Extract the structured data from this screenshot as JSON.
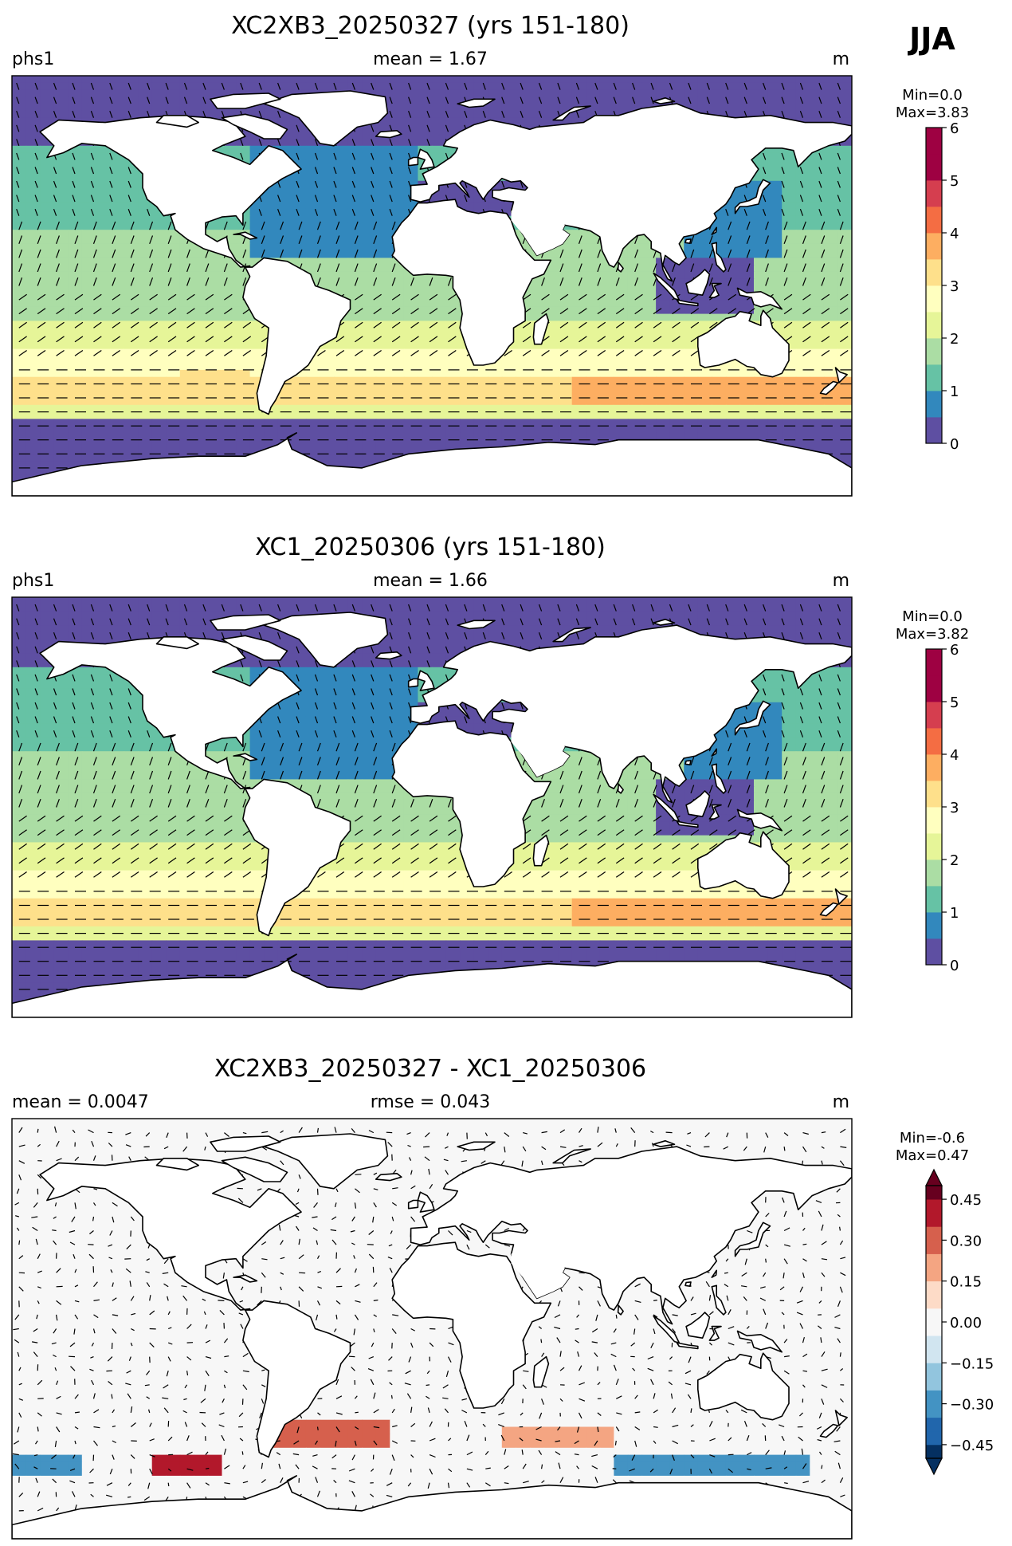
{
  "season": "JJA",
  "units": "m",
  "colors": {
    "sequential": [
      "#5e4fa2",
      "#3288bd",
      "#66c2a5",
      "#abdda4",
      "#e6f598",
      "#ffffbf",
      "#fee08b",
      "#fdae61",
      "#f46d43",
      "#d53e4f",
      "#9e0142"
    ],
    "diverging": [
      "#053061",
      "#2166ac",
      "#4393c3",
      "#92c5de",
      "#d1e5f0",
      "#f7f7f7",
      "#fddbc7",
      "#f4a582",
      "#d6604d",
      "#b2182b",
      "#67001f"
    ],
    "land": "#ffffff",
    "coast": "#000000"
  },
  "panels": [
    {
      "title": "XC2XB3_20250327 (yrs 151-180)",
      "left_label": "phs1",
      "center_label": "mean = 1.67",
      "right_label": "m",
      "colorbar_stats": [
        "Min=0.0",
        "Max=3.83"
      ]
    },
    {
      "title": "XC1_20250306 (yrs 151-180)",
      "left_label": "phs1",
      "center_label": "mean = 1.66",
      "right_label": "m",
      "colorbar_stats": [
        "Min=0.0",
        "Max=3.82"
      ]
    },
    {
      "title": "XC2XB3_20250327 - XC1_20250306",
      "left_label": "mean = 0.0047",
      "center_label": "rmse = 0.043",
      "right_label": "m",
      "colorbar_stats": [
        "Min=-0.6",
        "Max=0.47"
      ]
    }
  ],
  "chart_data": [
    {
      "type": "heatmap",
      "map": "global lat-lon contour map with wave direction vectors",
      "title": "XC2XB3_20250327 (yrs 151-180)",
      "variable": "phs1",
      "units": "m",
      "mean": 1.67,
      "min": 0.0,
      "max": 3.83,
      "colorbar_levels": [
        0,
        0.5,
        1,
        1.5,
        2,
        2.5,
        3,
        3.5,
        4,
        4.5,
        5,
        5.5,
        6
      ],
      "colorbar_ticks": [
        "0",
        "1",
        "2",
        "3",
        "4",
        "5",
        "6"
      ],
      "colormap": "Spectral_r"
    },
    {
      "type": "heatmap",
      "map": "global lat-lon contour map with wave direction vectors",
      "title": "XC1_20250306 (yrs 151-180)",
      "variable": "phs1",
      "units": "m",
      "mean": 1.66,
      "min": 0.0,
      "max": 3.82,
      "colorbar_levels": [
        0,
        0.5,
        1,
        1.5,
        2,
        2.5,
        3,
        3.5,
        4,
        4.5,
        5,
        5.5,
        6
      ],
      "colorbar_ticks": [
        "0",
        "1",
        "2",
        "3",
        "4",
        "5",
        "6"
      ],
      "colormap": "Spectral_r"
    },
    {
      "type": "heatmap",
      "map": "global lat-lon difference map with vectors",
      "title": "XC2XB3_20250327 - XC1_20250306",
      "units": "m",
      "mean": 0.0047,
      "rmse": 0.043,
      "min": -0.6,
      "max": 0.47,
      "colorbar_levels": [
        -0.5,
        -0.45,
        -0.4,
        -0.35,
        -0.3,
        -0.25,
        -0.2,
        -0.15,
        -0.1,
        -0.05,
        0,
        0.05,
        0.1,
        0.15,
        0.2,
        0.25,
        0.3,
        0.35,
        0.4,
        0.45,
        0.5
      ],
      "colorbar_ticks": [
        "0.45",
        "0.30",
        "0.15",
        "0.00",
        "−0.15",
        "−0.30",
        "−0.45"
      ],
      "colorbar_extend": "both",
      "colormap": "RdBu_r"
    }
  ]
}
